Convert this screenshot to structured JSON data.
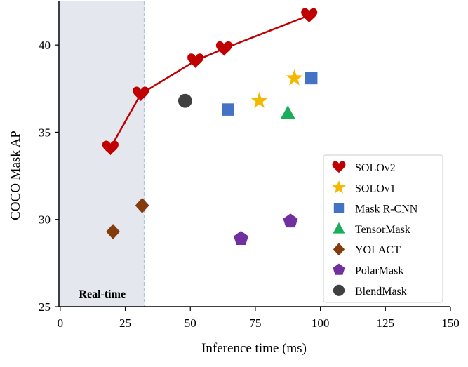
{
  "chart_data": {
    "type": "scatter",
    "xlabel": "Inference time (ms)",
    "ylabel": "COCO Mask AP",
    "xlim": [
      -0.5,
      150
    ],
    "ylim": [
      25,
      42.5
    ],
    "xticks": [
      0,
      25,
      50,
      75,
      100,
      125,
      150
    ],
    "yticks": [
      25,
      30,
      35,
      40
    ],
    "grid": false,
    "legend_position": "bottom-right",
    "realtime_region": {
      "label": "Real-time",
      "x_range": [
        0,
        32.3
      ],
      "fill": "#e5e7ee",
      "line_color": "#aec3dc"
    },
    "series": [
      {
        "name": "SOLOv2",
        "marker": "heart",
        "color": "#c00000",
        "connected": true,
        "x": [
          19.3,
          31,
          52,
          63,
          95.7
        ],
        "y": [
          34.1,
          37.2,
          39.1,
          39.8,
          41.7
        ]
      },
      {
        "name": "SOLOv1",
        "marker": "star",
        "color": "#f5b800",
        "x": [
          76.5,
          90
        ],
        "y": [
          36.8,
          38.1
        ]
      },
      {
        "name": "Mask R-CNN",
        "marker": "square",
        "color": "#4472c4",
        "x": [
          64.5,
          96.5
        ],
        "y": [
          36.3,
          38.1
        ]
      },
      {
        "name": "TensorMask",
        "marker": "triangle",
        "color": "#1aad5b",
        "x": [
          87.5
        ],
        "y": [
          36.1
        ]
      },
      {
        "name": "YOLACT",
        "marker": "diamond",
        "color": "#843c0c",
        "x": [
          20.3,
          31.5
        ],
        "y": [
          29.3,
          30.8
        ]
      },
      {
        "name": "PolarMask",
        "marker": "pentagon",
        "color": "#7030a0",
        "x": [
          69.5,
          88.5
        ],
        "y": [
          28.9,
          29.9
        ]
      },
      {
        "name": "BlendMask",
        "marker": "circle",
        "color": "#404040",
        "x": [
          48
        ],
        "y": [
          36.8
        ]
      }
    ]
  }
}
